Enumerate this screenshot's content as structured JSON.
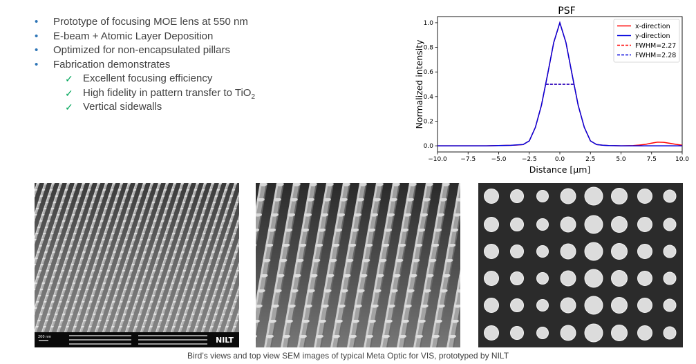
{
  "bullets": [
    "Prototype of focusing MOE lens at 550 nm",
    "E-beam + Atomic Layer Deposition",
    "Optimized for non-encapsulated pillars",
    "Fabrication demonstrates"
  ],
  "bullet_marker": "•",
  "check_marker": "✓",
  "subbullets": [
    {
      "text": "Excellent focusing efficiency",
      "sub": ""
    },
    {
      "text": "High fidelity in pattern transfer to TiO",
      "sub": "2"
    },
    {
      "text": "Vertical sidewalls",
      "sub": ""
    }
  ],
  "chart_data": {
    "type": "line",
    "title": "PSF",
    "xlabel": "Distance [μm]",
    "ylabel": "Normalized intensity",
    "xlim": [
      -10,
      10
    ],
    "ylim": [
      -0.05,
      1.05
    ],
    "xticks": [
      "−10.0",
      "−7.5",
      "−5.0",
      "−2.5",
      "0.0",
      "2.5",
      "5.0",
      "7.5",
      "10.0"
    ],
    "xtick_values": [
      -10,
      -7.5,
      -5,
      -2.5,
      0,
      2.5,
      5,
      7.5,
      10
    ],
    "yticks": [
      "0.0",
      "0.2",
      "0.4",
      "0.6",
      "0.8",
      "1.0"
    ],
    "ytick_values": [
      0,
      0.2,
      0.4,
      0.6,
      0.8,
      1.0
    ],
    "legend_position": "top-right",
    "series": [
      {
        "name": "x-direction",
        "color": "#ff0000",
        "style": "solid",
        "x": [
          -10,
          -6,
          -4,
          -3.5,
          -3,
          -2.5,
          -2,
          -1.5,
          -1,
          -0.5,
          0,
          0.5,
          1,
          1.5,
          2,
          2.5,
          3,
          3.5,
          4,
          5,
          6,
          6.5,
          7,
          7.5,
          8,
          8.5,
          9,
          9.5,
          10
        ],
        "y": [
          0,
          0,
          0.004,
          0.006,
          0.01,
          0.04,
          0.15,
          0.33,
          0.58,
          0.84,
          1.0,
          0.84,
          0.58,
          0.33,
          0.15,
          0.04,
          0.01,
          0.005,
          0.002,
          0,
          0.002,
          0.006,
          0.012,
          0.022,
          0.03,
          0.028,
          0.02,
          0.012,
          0.005
        ]
      },
      {
        "name": "y-direction",
        "color": "#0000dd",
        "style": "solid",
        "x": [
          -10,
          -6,
          -4,
          -3.5,
          -3,
          -2.5,
          -2,
          -1.5,
          -1,
          -0.5,
          0,
          0.5,
          1,
          1.5,
          2,
          2.5,
          3,
          3.5,
          4,
          5,
          6,
          7,
          8,
          9,
          10
        ],
        "y": [
          0,
          0,
          0.004,
          0.007,
          0.01,
          0.04,
          0.15,
          0.33,
          0.58,
          0.84,
          1.0,
          0.84,
          0.58,
          0.33,
          0.15,
          0.04,
          0.01,
          0.005,
          0.002,
          0,
          0,
          0,
          0,
          0,
          0
        ]
      },
      {
        "name": "FWHM=2.27",
        "color": "#ff0000",
        "style": "dashed",
        "x": [
          -1.135,
          1.135
        ],
        "y": [
          0.5,
          0.5
        ]
      },
      {
        "name": "FWHM=2.28",
        "color": "#0000dd",
        "style": "dashed",
        "x": [
          -1.14,
          1.14
        ],
        "y": [
          0.5,
          0.5
        ]
      }
    ]
  },
  "sem_scale_text": "200 nm",
  "sem_brand": "NILT",
  "caption": "Bird’s views and top view SEM images of typical Meta Optic for VIS, prototyped by NILT",
  "colors": {
    "bullet": "#2e75b6",
    "check": "#00a65a",
    "text": "#404040"
  }
}
